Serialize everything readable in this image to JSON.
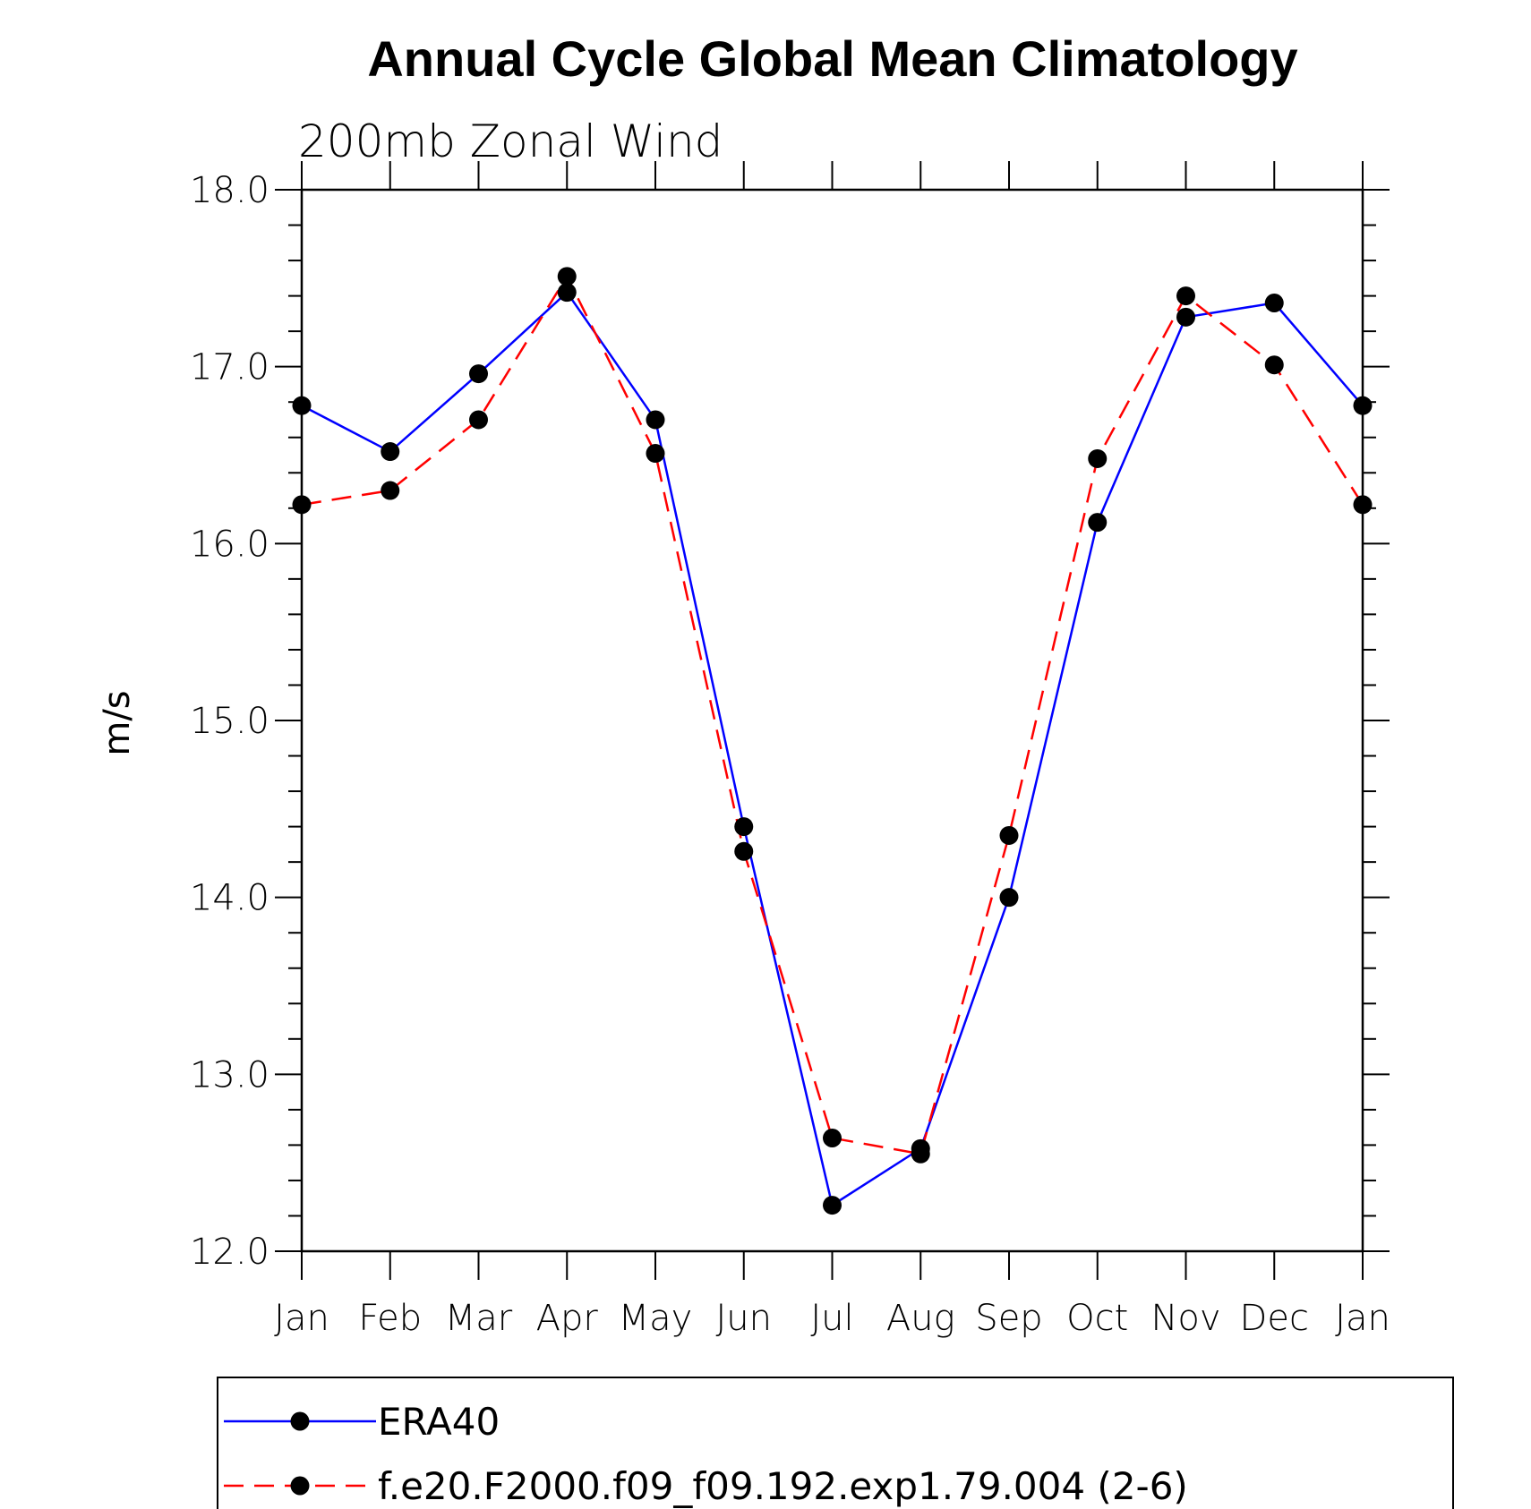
{
  "chart_data": {
    "type": "line",
    "title": "Annual Cycle Global Mean Climatology",
    "subtitle": "200mb Zonal Wind",
    "ylabel": "m/s",
    "xlabel": "",
    "ylim": [
      12.0,
      18.0
    ],
    "yticks": [
      "12.0",
      "13.0",
      "14.0",
      "15.0",
      "16.0",
      "17.0",
      "18.0"
    ],
    "categories": [
      "Jan",
      "Feb",
      "Mar",
      "Apr",
      "May",
      "Jun",
      "Jul",
      "Aug",
      "Sep",
      "Oct",
      "Nov",
      "Dec",
      "Jan"
    ],
    "grid": false,
    "legend_position": "bottom",
    "series": [
      {
        "name": "ERA40",
        "color": "#0000ff",
        "dash": "solid",
        "values": [
          16.78,
          16.52,
          16.96,
          17.42,
          16.7,
          14.4,
          12.26,
          12.58,
          14.0,
          16.12,
          17.28,
          17.36,
          16.78
        ]
      },
      {
        "name": "f.e20.F2000.f09_f09.192.exp1.79.004 (2-6)",
        "color": "#ff0000",
        "dash": "dashed",
        "values": [
          16.22,
          16.3,
          16.7,
          17.51,
          16.51,
          14.26,
          12.64,
          12.55,
          14.35,
          16.48,
          17.4,
          17.01,
          16.22
        ]
      }
    ]
  }
}
